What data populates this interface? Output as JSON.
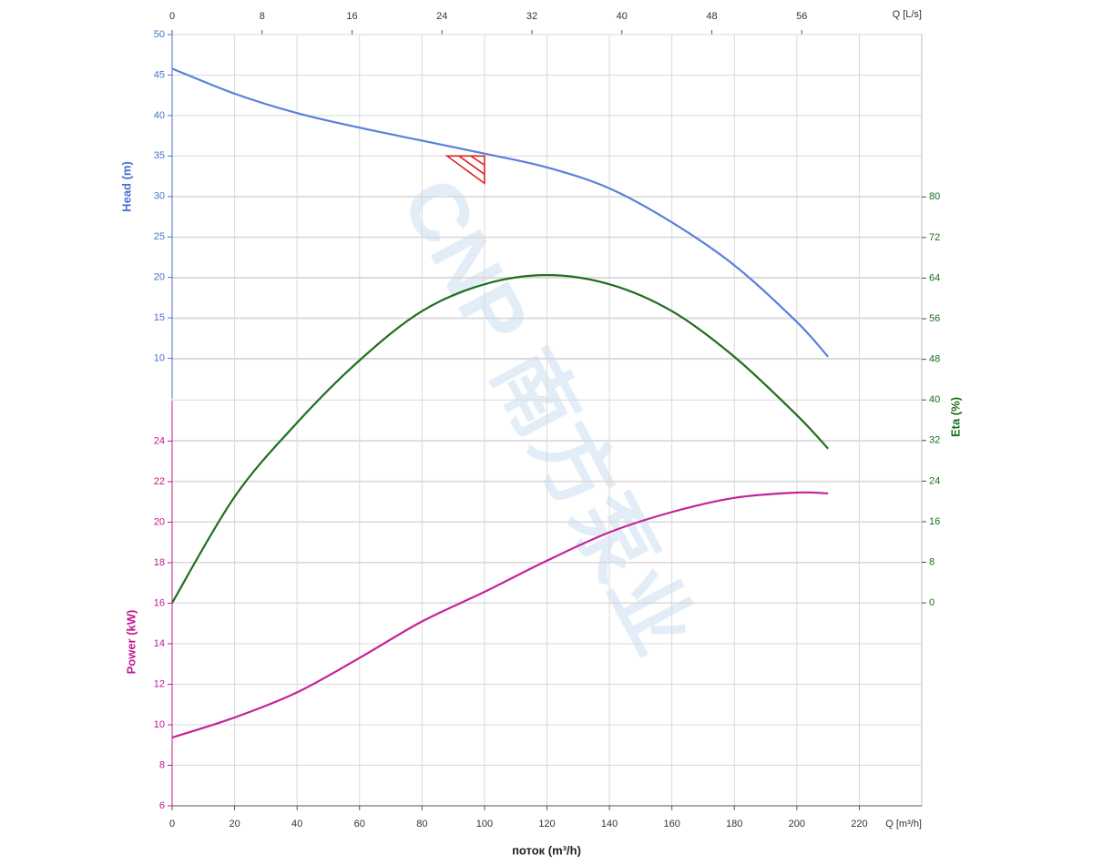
{
  "chart_data": {
    "type": "line",
    "watermark": "CNP 南方泵业",
    "xlabel": "поток (m³/h)",
    "x_unit_label": "Q [m³/h]",
    "x2_unit_label": "Q [L/s]",
    "xlim": [
      0,
      240
    ],
    "xticks": [
      0,
      20,
      40,
      60,
      80,
      100,
      120,
      140,
      160,
      180,
      200,
      220
    ],
    "x2lim": [
      0,
      66.67
    ],
    "x2ticks": [
      0,
      8,
      16,
      24,
      32,
      40,
      48,
      56
    ],
    "ylabel": "Head (m)",
    "ylim": [
      5,
      50
    ],
    "yticks": [
      10,
      15,
      20,
      25,
      30,
      35,
      40,
      45,
      50
    ],
    "power_label": "Power (kW)",
    "power_ylim": [
      6,
      26
    ],
    "power_yticks": [
      6,
      8,
      10,
      12,
      14,
      16,
      18,
      20,
      22,
      24
    ],
    "y2label": "Eta (%)",
    "y2lim": [
      -40,
      112
    ],
    "y2ticks": [
      0,
      8,
      16,
      24,
      32,
      40,
      48,
      56,
      64,
      72,
      80
    ],
    "grid": true,
    "x": [
      0,
      20,
      40,
      60,
      80,
      100,
      120,
      140,
      160,
      180,
      200,
      210
    ],
    "series": [
      {
        "name": "Head",
        "axis": "y",
        "color": "#5b7fdc",
        "values": [
          45.8,
          42.7,
          40.3,
          38.5,
          36.9,
          35.3,
          33.6,
          31.0,
          26.8,
          21.5,
          14.5,
          10.2
        ]
      },
      {
        "name": "Eta",
        "axis": "y2",
        "color": "#1f6e1f",
        "values": [
          0,
          20.9,
          35.5,
          47.8,
          57.5,
          62.8,
          64.6,
          62.8,
          57.5,
          48.5,
          37,
          30.4
        ]
      },
      {
        "name": "Power",
        "axis": "power",
        "color": "#c4239b",
        "values": [
          9.37,
          10.36,
          11.6,
          13.3,
          15.1,
          16.56,
          18.1,
          19.5,
          20.5,
          21.2,
          21.46,
          21.42
        ]
      }
    ],
    "duty_point": {
      "x": 100,
      "y": 35,
      "color": "#e02020"
    }
  }
}
